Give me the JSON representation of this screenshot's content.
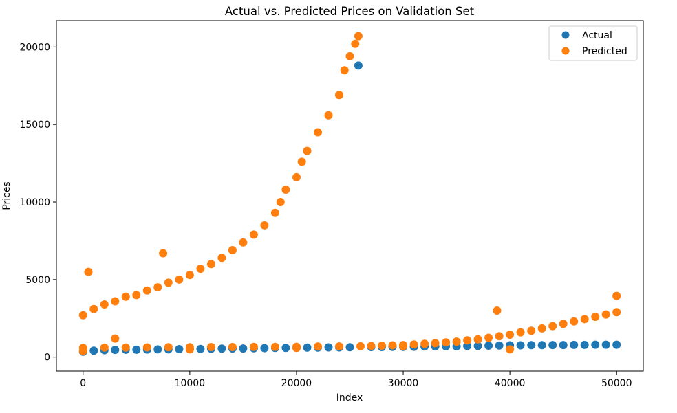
{
  "chart_data": {
    "type": "scatter",
    "title": "Actual vs. Predicted Prices on Validation Set",
    "xlabel": "Index",
    "ylabel": "Prices",
    "xlim": [
      -2500,
      52500
    ],
    "ylim": [
      -900,
      21700
    ],
    "xticks": [
      0,
      10000,
      20000,
      30000,
      40000,
      50000
    ],
    "xtick_labels": [
      "0",
      "10000",
      "20000",
      "30000",
      "40000",
      "50000"
    ],
    "yticks": [
      0,
      5000,
      10000,
      15000,
      20000
    ],
    "ytick_labels": [
      "0",
      "5000",
      "10000",
      "15000",
      "20000"
    ],
    "grid": false,
    "legend_placement": "top-right",
    "series": [
      {
        "name": "Actual",
        "color": "#1f77b4",
        "x": [
          0,
          1000,
          2000,
          3000,
          4000,
          5000,
          6000,
          7000,
          8000,
          9000,
          10000,
          11000,
          12000,
          13000,
          14000,
          15000,
          16000,
          17000,
          18000,
          19000,
          20000,
          21000,
          22000,
          23000,
          24000,
          25000,
          25800,
          27000,
          28000,
          29000,
          30000,
          31000,
          32000,
          33000,
          34000,
          35000,
          36000,
          37000,
          38000,
          39000,
          40000,
          41000,
          42000,
          43000,
          44000,
          45000,
          46000,
          47000,
          48000,
          49000,
          50000
        ],
        "y": [
          350,
          420,
          450,
          470,
          480,
          480,
          490,
          500,
          500,
          520,
          520,
          530,
          540,
          550,
          560,
          560,
          570,
          580,
          600,
          600,
          610,
          620,
          620,
          630,
          630,
          640,
          18800,
          650,
          650,
          660,
          660,
          670,
          680,
          690,
          700,
          700,
          720,
          720,
          740,
          750,
          760,
          760,
          770,
          770,
          780,
          780,
          790,
          790,
          800,
          800,
          800
        ]
      },
      {
        "name": "Predicted",
        "color": "#ff7f0e",
        "x": [
          0,
          500,
          1000,
          2000,
          3000,
          4000,
          5000,
          6000,
          7000,
          7500,
          8000,
          9000,
          10000,
          11000,
          12000,
          13000,
          14000,
          15000,
          16000,
          17000,
          18000,
          18500,
          19000,
          20000,
          20500,
          21000,
          22000,
          23000,
          24000,
          24500,
          25000,
          25500,
          25800,
          0,
          2000,
          4000,
          6000,
          8000,
          10000,
          12000,
          14000,
          16000,
          18000,
          20000,
          22000,
          24000,
          26000,
          27000,
          28000,
          29000,
          30000,
          31000,
          32000,
          33000,
          34000,
          35000,
          36000,
          37000,
          38000,
          38800,
          39000,
          40000,
          41000,
          42000,
          43000,
          44000,
          45000,
          46000,
          47000,
          48000,
          49000,
          50000,
          3000,
          0,
          10000,
          20000,
          30000,
          40000,
          50000
        ],
        "y": [
          2700,
          5500,
          3100,
          3400,
          3600,
          3900,
          4000,
          4300,
          4500,
          6700,
          4800,
          5000,
          5300,
          5700,
          6000,
          6400,
          6900,
          7400,
          7900,
          8500,
          9300,
          10000,
          10800,
          11600,
          12600,
          13300,
          14500,
          15600,
          16900,
          18500,
          19400,
          20200,
          20700,
          600,
          620,
          620,
          630,
          640,
          640,
          650,
          650,
          660,
          660,
          670,
          680,
          690,
          700,
          720,
          740,
          760,
          780,
          820,
          860,
          900,
          950,
          1000,
          1080,
          1150,
          1250,
          3000,
          1350,
          1450,
          1600,
          1700,
          1850,
          2000,
          2150,
          2300,
          2450,
          2600,
          2750,
          2900,
          1200,
          400,
          500,
          600,
          700,
          500,
          3950
        ]
      }
    ]
  }
}
